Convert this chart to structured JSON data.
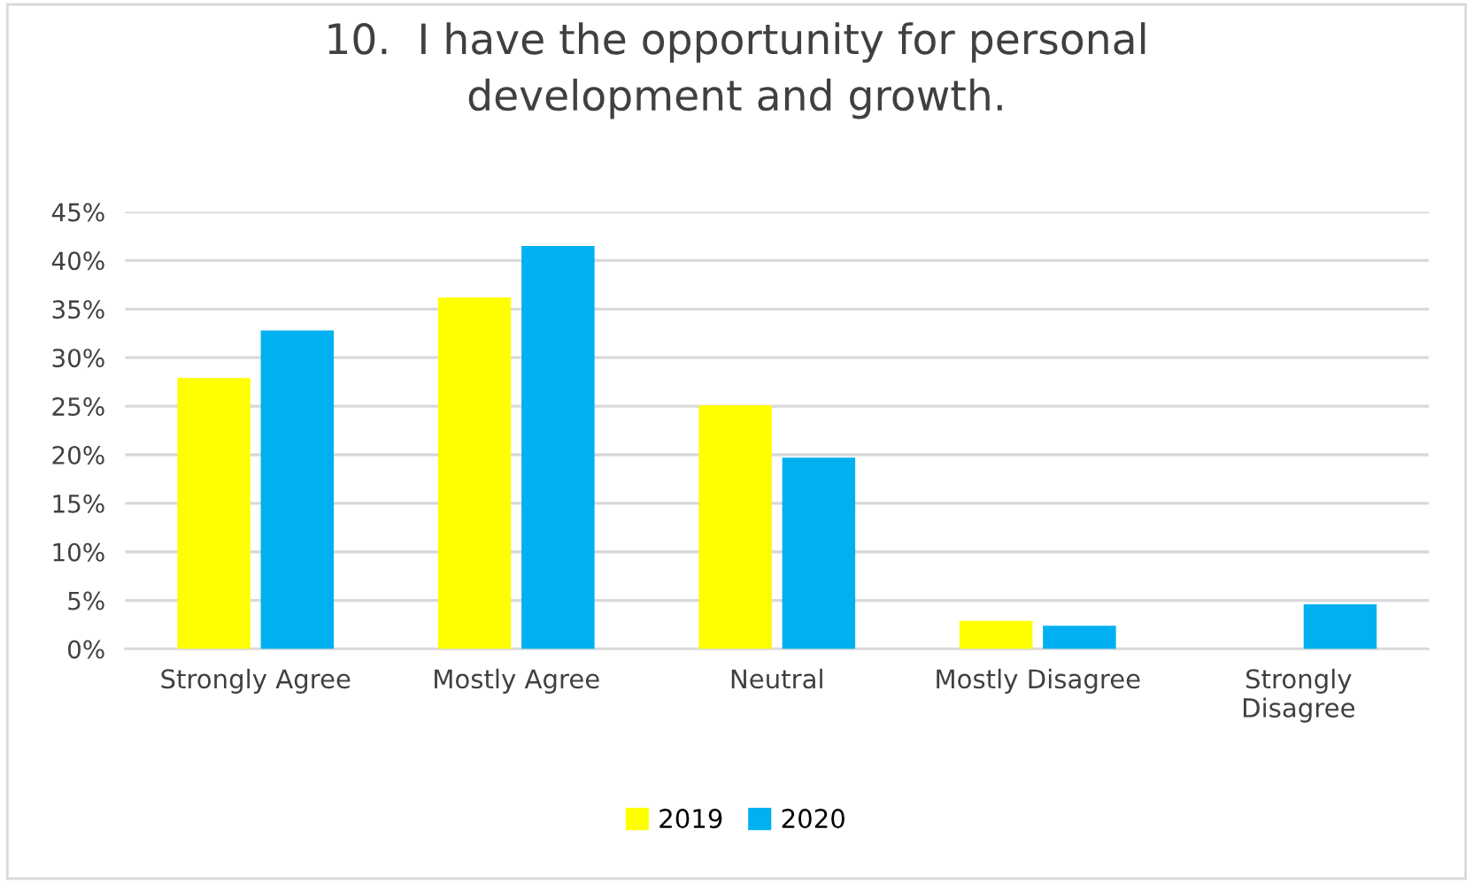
{
  "chart_data": {
    "type": "bar",
    "title": "10.  I have the opportunity for personal\ndevelopment and growth.",
    "categories": [
      "Strongly Agree",
      "Mostly Agree",
      "Neutral",
      "Mostly Disagree",
      "Strongly\nDisagree"
    ],
    "series": [
      {
        "name": "2019",
        "color": "#ffff00",
        "values": [
          27.9,
          36.2,
          25.1,
          2.9,
          0
        ]
      },
      {
        "name": "2020",
        "color": "#00b0f0",
        "values": [
          32.8,
          41.5,
          19.7,
          2.4,
          4.6
        ]
      }
    ],
    "ylim": [
      0,
      45
    ],
    "yticks": [
      {
        "value": 0,
        "label": "0%"
      },
      {
        "value": 5,
        "label": "5%"
      },
      {
        "value": 10,
        "label": "10%"
      },
      {
        "value": 15,
        "label": "15%"
      },
      {
        "value": 20,
        "label": "20%"
      },
      {
        "value": 25,
        "label": "25%"
      },
      {
        "value": 30,
        "label": "30%"
      },
      {
        "value": 35,
        "label": "35%"
      },
      {
        "value": 40,
        "label": "40%"
      },
      {
        "value": 45,
        "label": "45%"
      }
    ],
    "grid": "y",
    "legend": "bottom"
  }
}
